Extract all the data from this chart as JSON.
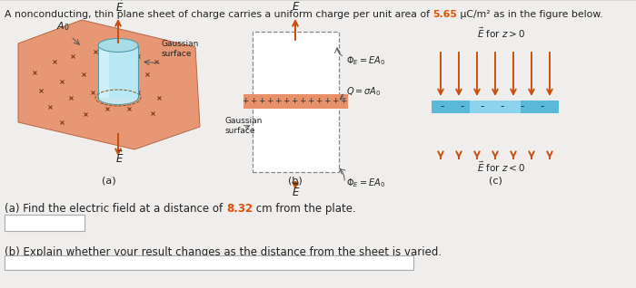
{
  "background_color": "#f0eeec",
  "highlight_color": "#e05000",
  "arrow_color": "#c85010",
  "sheet_color": "#e8906a",
  "cylinder_color_top": "#a8dde8",
  "cylinder_color_body": "#b8e8f0",
  "blue_strip_color": "#5ab8d8",
  "text_color": "#222222",
  "title_normal": "A nonconducting, thin plane sheet of charge carries a uniform charge per unit area of ",
  "title_highlight": "5.65",
  "title_units": " μC/m² as in the figure below.",
  "q_a_pre": "(a) Find the electric field at a distance of ",
  "q_a_highlight": "8.32",
  "q_a_post": " cm from the plate.",
  "q_b": "(b) Explain whether your result changes as the distance from the sheet is varied."
}
